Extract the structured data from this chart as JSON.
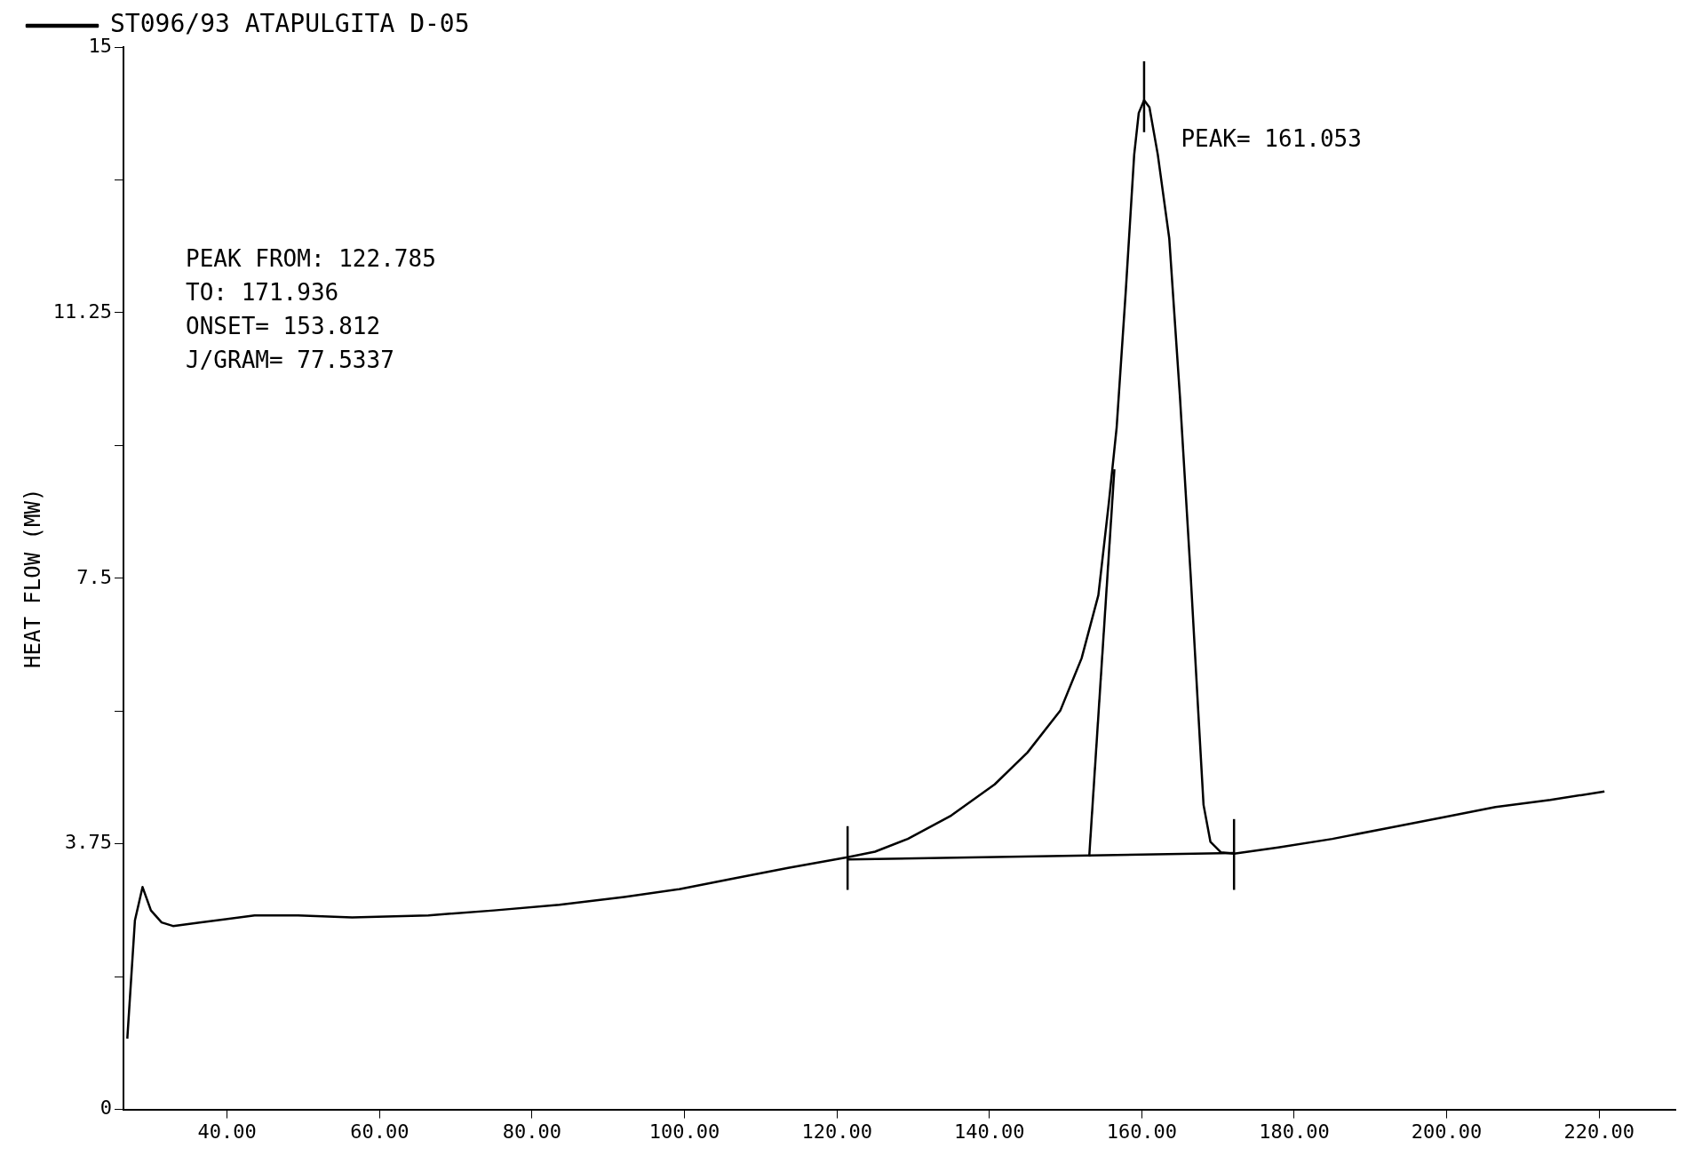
{
  "chart_data": {
    "type": "line",
    "ylabel": "HEAT FLOW (MW)",
    "xlim": [
      26.4,
      230
    ],
    "ylim": [
      0,
      15
    ],
    "xticks": [
      {
        "value": 40,
        "label": "40.00"
      },
      {
        "value": 60,
        "label": "60.00"
      },
      {
        "value": 80,
        "label": "80.00"
      },
      {
        "value": 100,
        "label": "100.00"
      },
      {
        "value": 120,
        "label": "120.00"
      },
      {
        "value": 140,
        "label": "140.00"
      },
      {
        "value": 160,
        "label": "160.00"
      },
      {
        "value": 180,
        "label": "180.00"
      },
      {
        "value": 200,
        "label": "200.00"
      },
      {
        "value": 220,
        "label": "220.00"
      }
    ],
    "yticks": [
      0,
      {
        "value": 1.875,
        "label": null
      },
      3.75,
      {
        "value": 5.625,
        "label": null
      },
      7.5,
      {
        "value": 9.375,
        "label": null
      },
      11.25,
      {
        "value": 13.125,
        "label": null
      },
      15
    ],
    "grid": false,
    "legend": "top left",
    "marker": "none",
    "line_style": "solid",
    "series": [
      {
        "name": "ST096/93 ATAPULGITA D-05",
        "color": "#000000",
        "x": [
          26.9,
          27.9,
          28.9,
          30,
          31.4,
          32.9,
          36.4,
          43.6,
          49.3,
          56.4,
          66.4,
          75,
          83.6,
          92.1,
          99.3,
          106.4,
          113.6,
          121.4,
          125,
          129.3,
          135,
          140.7,
          145,
          149.3,
          152.1,
          154.3,
          155.7,
          156.7,
          157.9,
          159,
          159.6,
          160.3,
          161,
          162.1,
          163.6,
          165,
          166.4,
          167.4,
          168.1,
          169,
          170.4,
          172.1,
          177.9,
          185,
          192.1,
          199.3,
          206.4,
          213.6,
          220.7
        ],
        "values": [
          1.0,
          2.67,
          3.14,
          2.81,
          2.64,
          2.59,
          2.64,
          2.74,
          2.74,
          2.71,
          2.74,
          2.81,
          2.89,
          3.0,
          3.11,
          3.26,
          3.41,
          3.56,
          3.64,
          3.82,
          4.15,
          4.59,
          5.04,
          5.63,
          6.37,
          7.26,
          8.59,
          9.63,
          11.56,
          13.48,
          14.07,
          14.25,
          14.15,
          13.48,
          12.3,
          10.07,
          7.56,
          5.63,
          4.3,
          3.78,
          3.63,
          3.61,
          3.7,
          3.82,
          3.97,
          4.12,
          4.27,
          4.37,
          4.49
        ]
      },
      {
        "color": "#000000",
        "x": [
          121.4,
          172.1
        ],
        "values": [
          3.53,
          3.62
        ]
      },
      {
        "color": "#000000",
        "x": [
          153.1,
          156.4
        ],
        "values": [
          3.57,
          9.04
        ]
      },
      {
        "color": "#000000",
        "x": [
          121.4,
          121.4
        ],
        "values": [
          3.1,
          4.0
        ]
      },
      {
        "color": "#000000",
        "x": [
          172.1,
          172.1
        ],
        "values": [
          3.1,
          4.1
        ]
      },
      {
        "color": "#000000",
        "x": [
          160.3,
          160.3
        ],
        "values": [
          13.8,
          14.8
        ]
      }
    ],
    "annotations": [
      {
        "text": "PEAK= 161.053",
        "x": 161.053,
        "y": 14.25
      },
      "PEAK FROM: 122.785",
      "TO: 171.936",
      "ONSET= 153.812",
      "J/GRAM= 77.5337"
    ]
  }
}
